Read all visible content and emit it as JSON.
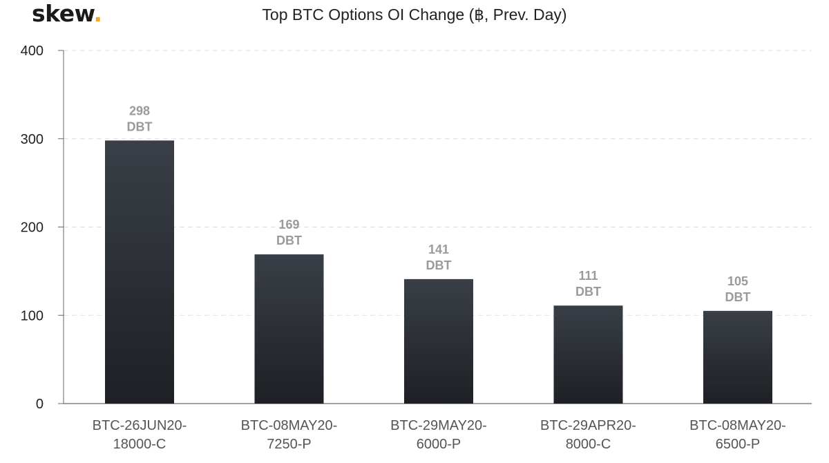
{
  "logo": {
    "text": "skew",
    "dot": ".",
    "dot_color": "#f5a623"
  },
  "chart_data": {
    "type": "bar",
    "title": "Top BTC Options OI Change (฿, Prev. Day)",
    "xlabel": "",
    "ylabel": "",
    "categories": [
      [
        "BTC-26JUN20-",
        "18000-C"
      ],
      [
        "BTC-08MAY20-",
        "7250-P"
      ],
      [
        "BTC-29MAY20-",
        "6000-P"
      ],
      [
        "BTC-29APR20-",
        "8000-C"
      ],
      [
        "BTC-08MAY20-",
        "6500-P"
      ]
    ],
    "values": [
      298,
      169,
      141,
      111,
      105
    ],
    "data_labels": [
      [
        "298",
        "DBT"
      ],
      [
        "169",
        "DBT"
      ],
      [
        "141",
        "DBT"
      ],
      [
        "111",
        "DBT"
      ],
      [
        "105",
        "DBT"
      ]
    ],
    "ylim": [
      0,
      400
    ],
    "yticks": [
      "0",
      "100",
      "200",
      "300",
      "400"
    ],
    "grid": true,
    "legend": "none",
    "bar_color_top": "#3a3f47",
    "bar_color_bottom": "#1d2024",
    "grid_color": "#dddddd",
    "axis_color": "#666666"
  }
}
